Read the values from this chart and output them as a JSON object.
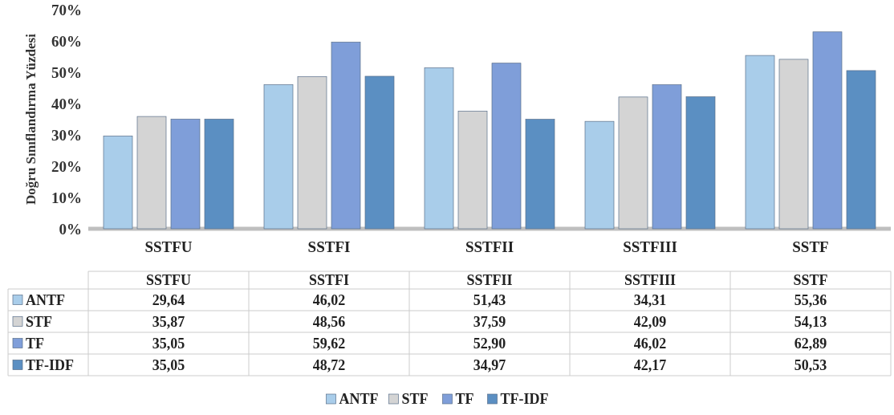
{
  "chart_data": {
    "type": "bar",
    "ylabel": "Doğru Sınıflandırma Yüzdesi",
    "categories": [
      "SSTFU",
      "SSTFI",
      "SSTFII",
      "SSTFIII",
      "SSTF"
    ],
    "series": [
      {
        "name": "ANTF",
        "color": "#a9cdea",
        "values": [
          29.64,
          46.02,
          51.43,
          34.31,
          55.36
        ],
        "value_labels": [
          "29,64",
          "46,02",
          "51,43",
          "34,31",
          "55,36"
        ]
      },
      {
        "name": "STF",
        "color": "#d4d4d4",
        "values": [
          35.87,
          48.56,
          37.59,
          42.09,
          54.13
        ],
        "value_labels": [
          "35,87",
          "48,56",
          "37,59",
          "42,09",
          "54,13"
        ]
      },
      {
        "name": "TF",
        "color": "#7f9ed9",
        "values": [
          35.05,
          59.62,
          52.9,
          46.02,
          62.89
        ],
        "value_labels": [
          "35,05",
          "59,62",
          "52,90",
          "46,02",
          "62,89"
        ]
      },
      {
        "name": "TF-IDF",
        "color": "#5b8fc2",
        "values": [
          35.05,
          48.72,
          34.97,
          42.17,
          50.53
        ],
        "value_labels": [
          "35,05",
          "48,72",
          "34,97",
          "42,17",
          "50,53"
        ]
      }
    ],
    "ylim": [
      0,
      70
    ],
    "yticks": [
      {
        "value": 0,
        "label": "0%"
      },
      {
        "value": 10,
        "label": "10%"
      },
      {
        "value": 20,
        "label": "20%"
      },
      {
        "value": 30,
        "label": "30%"
      },
      {
        "value": 40,
        "label": "40%"
      },
      {
        "value": 50,
        "label": "50%"
      },
      {
        "value": 60,
        "label": "60%"
      },
      {
        "value": 70,
        "label": "70%"
      }
    ],
    "grid": false,
    "legend": "bottom"
  }
}
